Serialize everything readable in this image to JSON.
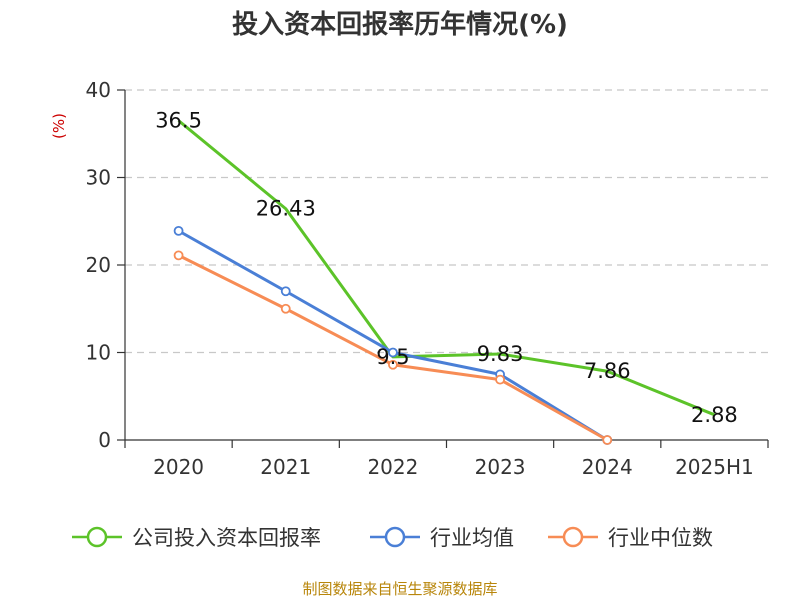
{
  "chart_data": {
    "type": "line",
    "title": "投入资本回报率历年情况(%)",
    "ylabel": "(%)",
    "categories": [
      "2020",
      "2021",
      "2022",
      "2023",
      "2024",
      "2025H1"
    ],
    "ylim": [
      0,
      40
    ],
    "yticks": [
      0,
      10,
      20,
      30,
      40
    ],
    "grid": true,
    "legend_position": "bottom",
    "series": [
      {
        "name": "公司投入资本回报率",
        "color": "#5cc329",
        "values": [
          36.5,
          26.43,
          9.5,
          9.83,
          7.86,
          2.88
        ],
        "labels": [
          "36.5",
          "26.43",
          "9.5",
          "9.83",
          "7.86",
          "2.88"
        ],
        "markers": [
          false,
          false,
          false,
          false,
          false,
          false
        ]
      },
      {
        "name": "行业均值",
        "color": "#4a7fd6",
        "values": [
          23.9,
          17.0,
          10.0,
          7.5,
          0.0,
          null
        ],
        "markers": [
          true,
          true,
          true,
          true,
          true,
          false
        ]
      },
      {
        "name": "行业中位数",
        "color": "#f78c55",
        "values": [
          21.1,
          15.0,
          8.6,
          6.9,
          0.0,
          null
        ],
        "markers": [
          true,
          true,
          true,
          true,
          true,
          false
        ]
      }
    ]
  },
  "source": "制图数据来自恒生聚源数据库"
}
